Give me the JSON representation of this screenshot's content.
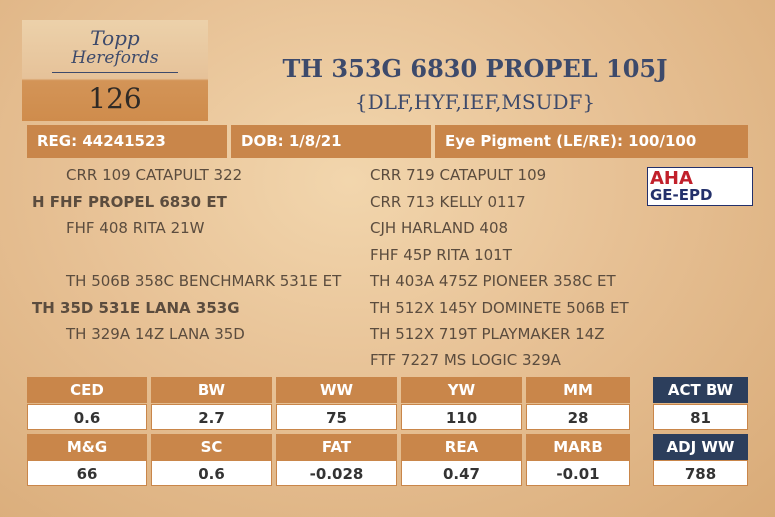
{
  "logo": {
    "top": "Topp",
    "bottom": "Herefords"
  },
  "lot": "126",
  "title": "TH 353G 6830 PROPEL 105J",
  "subtitle": "{DLF,HYF,IEF,MSUDF}",
  "info": [
    "REG: 44241523",
    "DOB: 1/8/21",
    "Eye Pigment (LE/RE): 100/100"
  ],
  "pedigree": {
    "left": [
      "CRR 109 CATAPULT 322",
      "H FHF PROPEL 6830 ET",
      "FHF 408 RITA 21W",
      "TH 506B 358C BENCHMARK 531E ET",
      "TH 35D 531E LANA 353G",
      "TH 329A 14Z LANA 35D"
    ],
    "right": [
      "CRR 719 CATAPULT 109",
      "CRR 713 KELLY 0117",
      "CJH HARLAND 408",
      "FHF 45P RITA 101T",
      "TH 403A 475Z PIONEER 358C ET",
      "TH 512X 145Y DOMINETE 506B ET",
      "TH 512X 719T PLAYMAKER 14Z",
      "FTF 7227 MS LOGIC 329A"
    ]
  },
  "badge": {
    "top": "AHA",
    "bottom": "GE-EPD"
  },
  "epd": {
    "headers1": [
      "CED",
      "BW",
      "WW",
      "YW",
      "MM"
    ],
    "values1": [
      "0.6",
      "2.7",
      "75",
      "110",
      "28"
    ],
    "headers2": [
      "M&G",
      "SC",
      "FAT",
      "REA",
      "MARB"
    ],
    "values2": [
      "66",
      "0.6",
      "-0.028",
      "0.47",
      "-0.01"
    ]
  },
  "side": {
    "act_bw_label": "ACT BW",
    "act_bw": "81",
    "adj_ww_label": "ADJ WW",
    "adj_ww": "788"
  }
}
